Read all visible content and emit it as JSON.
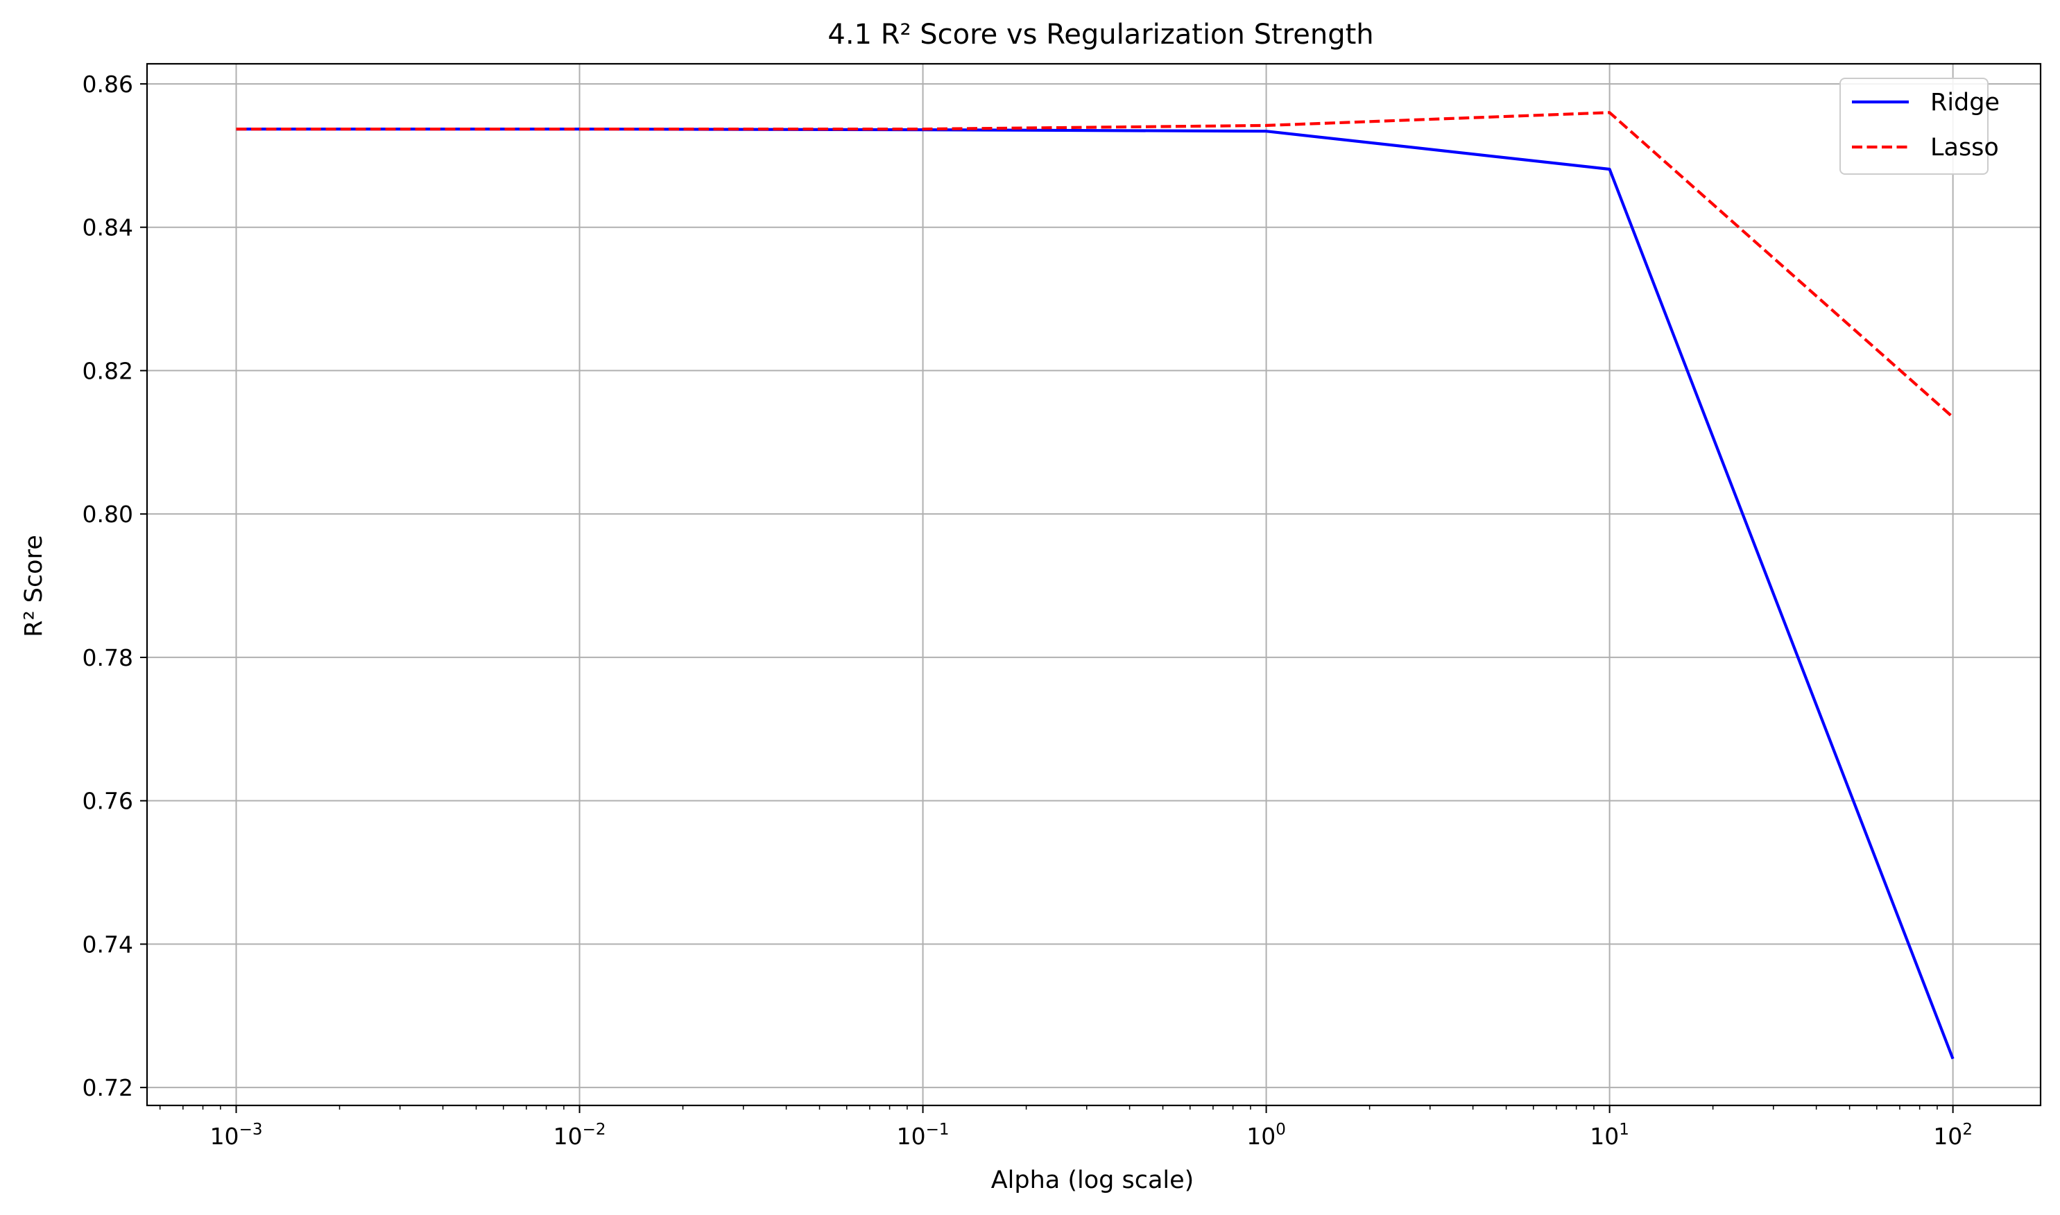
{
  "chart_data": {
    "type": "line",
    "title": "4.1 R² Score vs Regularization Strength",
    "xlabel": "Alpha (log scale)",
    "ylabel": "R² Score",
    "xscale": "log",
    "xlim": [
      0.00055,
      180
    ],
    "ylim": [
      0.7175,
      0.8628
    ],
    "x": [
      0.001,
      0.01,
      0.1,
      1,
      10,
      100
    ],
    "xticks": [
      {
        "value": 0.001,
        "base": "10",
        "exp": "−3"
      },
      {
        "value": 0.01,
        "base": "10",
        "exp": "−2"
      },
      {
        "value": 0.1,
        "base": "10",
        "exp": "−1"
      },
      {
        "value": 1,
        "base": "10",
        "exp": "0"
      },
      {
        "value": 10,
        "base": "10",
        "exp": "1"
      },
      {
        "value": 100,
        "base": "10",
        "exp": "2"
      }
    ],
    "yticks": [
      0.72,
      0.74,
      0.76,
      0.78,
      0.8,
      0.82,
      0.84,
      0.86
    ],
    "ytick_labels": [
      "0.72",
      "0.74",
      "0.76",
      "0.78",
      "0.80",
      "0.82",
      "0.84",
      "0.86"
    ],
    "grid": true,
    "legend_position": "top-right",
    "series": [
      {
        "name": "Ridge",
        "color": "#0000ff",
        "style": "solid",
        "values": [
          0.8537,
          0.8537,
          0.8536,
          0.8534,
          0.8481,
          0.724
        ]
      },
      {
        "name": "Lasso",
        "color": "#ff0000",
        "style": "dashed",
        "values": [
          0.8537,
          0.8537,
          0.8537,
          0.8542,
          0.856,
          0.8135
        ]
      }
    ]
  }
}
